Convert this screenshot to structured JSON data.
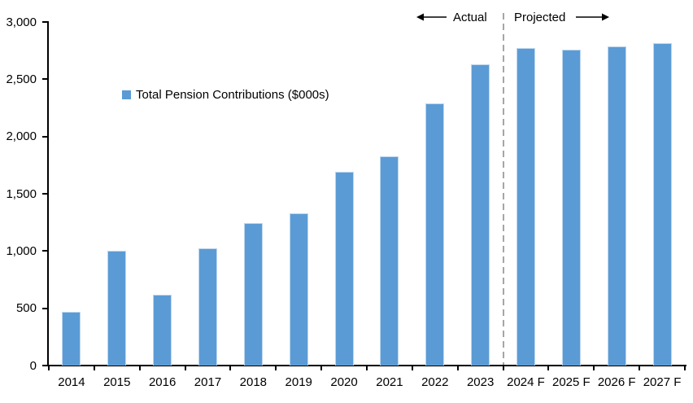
{
  "chart_data": {
    "type": "bar",
    "legend": "Total Pension Contributions ($000s)",
    "legend_position": "inside-top-left",
    "grid": false,
    "categories": [
      "2014",
      "2015",
      "2016",
      "2017",
      "2018",
      "2019",
      "2020",
      "2021",
      "2022",
      "2023",
      "2024 F",
      "2025 F",
      "2026 F",
      "2027 F"
    ],
    "values": [
      470,
      1000,
      615,
      1025,
      1245,
      1330,
      1690,
      1830,
      2290,
      2630,
      2770,
      2760,
      2790,
      2815
    ],
    "ylim": [
      0,
      3000
    ],
    "ytick_interval": 500,
    "ytick_labels": [
      "0",
      "500",
      "1,000",
      "1,500",
      "2,000",
      "2,500",
      "3,000"
    ],
    "annotations": {
      "actual_label": "Actual",
      "projected_label": "Projected",
      "divider_after_category": "2023"
    },
    "colors": {
      "bar_fill": "#5B9BD5",
      "bar_edge": "#BDD7EE",
      "divider": "#A6A6A6",
      "axis": "#000000",
      "text": "#000000"
    }
  }
}
